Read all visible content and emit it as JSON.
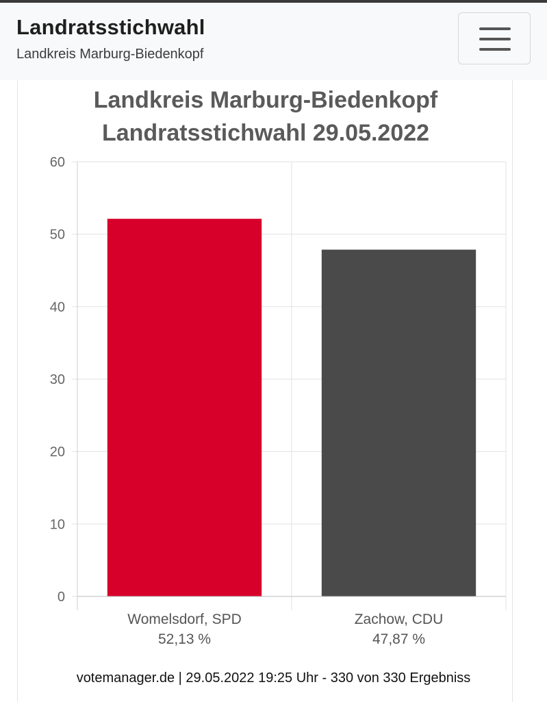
{
  "header": {
    "title": "Landratsstichwahl",
    "subtitle": "Landkreis Marburg-Biedenkopf",
    "menu_icon": "hamburger-menu-icon"
  },
  "chart_data": {
    "type": "bar",
    "title_lines": [
      "Landkreis Marburg-Biedenkopf",
      "Landratsstichwahl 29.05.2022"
    ],
    "categories": [
      "Womelsdorf, SPD",
      "Zachow, CDU"
    ],
    "value_labels": [
      "52,13 %",
      "47,87 %"
    ],
    "values": [
      52.13,
      47.87
    ],
    "colors": [
      "#d6002a",
      "#4a4a4a"
    ],
    "ylim": [
      0,
      60
    ],
    "yticks": [
      0,
      10,
      20,
      30,
      40,
      50,
      60
    ],
    "grid": true,
    "xlabel": "",
    "ylabel": ""
  },
  "footer": {
    "text": "votemanager.de | 29.05.2022 19:25 Uhr - 330 von 330 Ergebniss"
  }
}
